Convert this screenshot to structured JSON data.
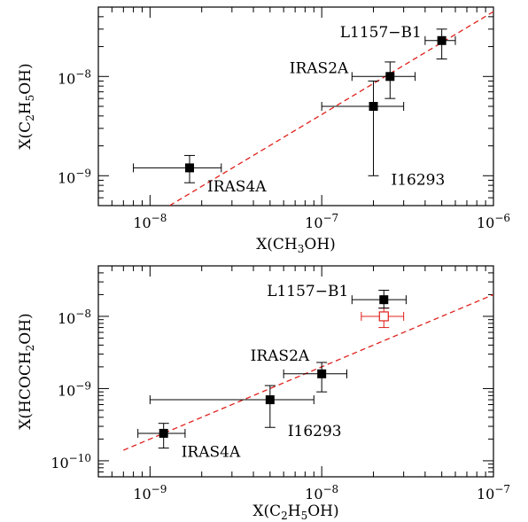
{
  "chart_data": [
    {
      "type": "scatter",
      "xlabel": "X(CH3OH)",
      "ylabel": "X(C2H5OH)",
      "xscale": "log",
      "yscale": "log",
      "xlim": [
        5e-09,
        1e-06
      ],
      "ylim": [
        5e-10,
        5e-08
      ],
      "x_ticks": [
        {
          "value": 1e-08,
          "base": "10",
          "exp": "−8"
        },
        {
          "value": 1e-07,
          "base": "10",
          "exp": "−7"
        },
        {
          "value": 1e-06,
          "base": "10",
          "exp": "−6"
        }
      ],
      "y_ticks": [
        {
          "value": 1e-09,
          "base": "10",
          "exp": "−9"
        },
        {
          "value": 1e-08,
          "base": "10",
          "exp": "−8"
        }
      ],
      "points": [
        {
          "label": "L1157−B1",
          "x": 5e-07,
          "xerr": [
            4e-07,
            6e-07
          ],
          "y": 2.3e-08,
          "yerr": [
            1.5e-08,
            3e-08
          ],
          "label_pos": "left"
        },
        {
          "label": "IRAS2A",
          "x": 2.5e-07,
          "xerr": [
            1.5e-07,
            3.5e-07
          ],
          "y": 1e-08,
          "yerr": [
            6e-09,
            1.4e-08
          ],
          "label_pos": "left"
        },
        {
          "label": "I16293",
          "x": 2e-07,
          "xerr": [
            1e-07,
            3e-07
          ],
          "y": 5e-09,
          "yerr": [
            1e-09,
            9e-09
          ],
          "label_pos": "below-right"
        },
        {
          "label": "IRAS4A",
          "x": 1.7e-08,
          "xerr": [
            8e-09,
            2.6e-08
          ],
          "y": 1.2e-09,
          "yerr": [
            8.5e-10,
            1.6e-09
          ],
          "label_pos": "below-right"
        }
      ],
      "fit_line": {
        "x": [
          1.3e-08,
          1e-06
        ],
        "y": [
          5e-10,
          4.5e-08
        ]
      }
    },
    {
      "type": "scatter",
      "xlabel": "X(C2H5OH)",
      "ylabel": "X(HCOCH2OH)",
      "xscale": "log",
      "yscale": "log",
      "xlim": [
        5e-10,
        1e-07
      ],
      "ylim": [
        6e-11,
        5e-08
      ],
      "x_ticks": [
        {
          "value": 1e-09,
          "base": "10",
          "exp": "−9"
        },
        {
          "value": 1e-08,
          "base": "10",
          "exp": "−8"
        },
        {
          "value": 1e-07,
          "base": "10",
          "exp": "−7"
        }
      ],
      "y_ticks": [
        {
          "value": 1e-10,
          "base": "10",
          "exp": "−10"
        },
        {
          "value": 1e-09,
          "base": "10",
          "exp": "−9"
        },
        {
          "value": 1e-08,
          "base": "10",
          "exp": "−8"
        }
      ],
      "points": [
        {
          "label": "L1157−B1",
          "x": 2.3e-08,
          "xerr": [
            1.5e-08,
            3.1e-08
          ],
          "y": 1.7e-08,
          "yerr": [
            1.3e-08,
            2.3e-08
          ],
          "label_pos": "left"
        },
        {
          "label": "IRAS2A",
          "x": 1e-08,
          "xerr": [
            6e-09,
            1.4e-08
          ],
          "y": 1.6e-09,
          "yerr": [
            9e-10,
            2.3e-09
          ],
          "label_pos": "above-left"
        },
        {
          "label": "I16293",
          "x": 5e-09,
          "xerr": [
            1e-09,
            9e-09
          ],
          "y": 7e-10,
          "yerr": [
            2.9e-10,
            1.1e-09
          ],
          "label_pos": "below-right"
        },
        {
          "label": "IRAS4A",
          "x": 1.2e-09,
          "xerr": [
            8.5e-10,
            1.6e-09
          ],
          "y": 2.4e-10,
          "yerr": [
            1.5e-10,
            3.3e-10
          ],
          "label_pos": "below-right"
        }
      ],
      "open_points": [
        {
          "x": 2.3e-08,
          "xerr": [
            1.7e-08,
            3e-08
          ],
          "y": 1e-08,
          "yerr": [
            7e-09,
            1.3e-08
          ]
        }
      ],
      "fit_line": {
        "x": [
          7e-10,
          1e-07
        ],
        "y": [
          1.4e-10,
          2e-08
        ]
      }
    }
  ]
}
